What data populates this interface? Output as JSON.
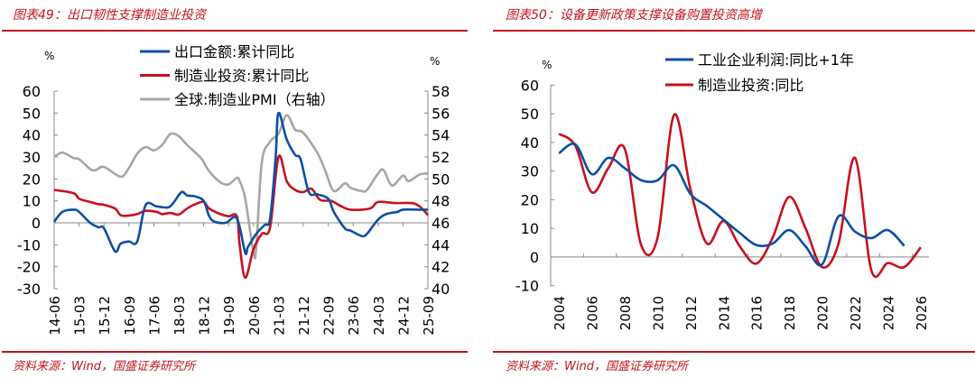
{
  "left": {
    "title": "图表49：出口韧性支撑制造业投资",
    "source": "资料来源：Wind，国盛证券研究所"
  },
  "right": {
    "title": "图表50：设备更新政策支撑设备购置投资高增",
    "source": "资料来源：Wind，国盛证券研究所"
  },
  "chart_data": [
    {
      "type": "line",
      "x_unit": "months since 2014-06",
      "xlim": [
        0,
        135
      ],
      "x_tick_labels": [
        "14-06",
        "15-03",
        "15-12",
        "16-09",
        "17-06",
        "18-03",
        "18-12",
        "19-09",
        "20-06",
        "21-03",
        "21-12",
        "22-09",
        "23-06",
        "24-03",
        "24-12",
        "25-09"
      ],
      "ylabel_left": "%",
      "ylabel_right": "%",
      "ylim_left": [
        -30,
        60
      ],
      "yticks_left": [
        "60",
        "50",
        "40",
        "30",
        "20",
        "10",
        "0",
        "-10",
        "-20",
        "-30"
      ],
      "ylim_right": [
        40,
        58
      ],
      "yticks_right": [
        "58",
        "56",
        "54",
        "52",
        "50",
        "48",
        "46",
        "44",
        "42",
        "40"
      ],
      "series": [
        {
          "name": "出口金额:累计同比",
          "axis": "left",
          "color": "#0b4fa6",
          "x": [
            0,
            3,
            7,
            9,
            13,
            16,
            18,
            22,
            24,
            27,
            30,
            33,
            37,
            41,
            43,
            46,
            48,
            51,
            54,
            56,
            58,
            62,
            66,
            69,
            70,
            73,
            76,
            78,
            80,
            81,
            84,
            87,
            89,
            92,
            95,
            99,
            101,
            105,
            107,
            111,
            113,
            117,
            120,
            124,
            126,
            132,
            135
          ],
          "y": [
            0.5,
            5,
            6,
            5,
            0,
            -2,
            -2.5,
            -13,
            -9.5,
            -8.5,
            -8.5,
            8,
            7.5,
            7,
            9,
            14,
            12.5,
            12,
            10,
            3,
            0.5,
            0,
            2,
            -13.5,
            -11,
            -5,
            -1,
            2,
            30,
            50,
            38,
            31,
            29,
            14,
            13,
            11,
            5,
            -2.5,
            -3.5,
            -6,
            -5,
            1.5,
            4,
            5,
            6,
            6,
            6
          ]
        },
        {
          "name": "制造业投资:累计同比",
          "axis": "left",
          "color": "#c8101e",
          "x": [
            0,
            7,
            9,
            13,
            16,
            18,
            22,
            24,
            27,
            30,
            33,
            37,
            39,
            42,
            45,
            48,
            51,
            54,
            56,
            60,
            63,
            66,
            67,
            69,
            72,
            75,
            78,
            81,
            84,
            87,
            90,
            93,
            96,
            100,
            103,
            107,
            114,
            117,
            123,
            129,
            132,
            135
          ],
          "y": [
            15,
            13.5,
            11,
            9.5,
            8.5,
            8.2,
            6.5,
            3.5,
            3.3,
            4,
            5.5,
            5,
            4,
            4.5,
            3.8,
            6.5,
            8.5,
            9.5,
            6.5,
            4,
            3,
            3,
            -10,
            -25,
            -12,
            -5,
            -2,
            30,
            19,
            15,
            14,
            15.5,
            10.5,
            10,
            8,
            6,
            6.5,
            9.5,
            9,
            9,
            7.5,
            3.5
          ]
        },
        {
          "name": "全球:制造业PMI（右轴）",
          "axis": "right",
          "color": "#a6a6a6",
          "x": [
            0,
            3,
            7,
            9,
            13,
            15,
            18,
            24,
            27,
            30,
            33,
            36,
            39,
            42,
            45,
            48,
            53,
            56,
            60,
            63,
            66,
            67,
            69,
            72,
            73,
            75,
            78,
            81,
            84,
            87,
            90,
            95,
            98,
            101,
            105,
            107,
            111,
            113,
            117,
            119,
            122,
            126,
            128,
            132,
            135
          ],
          "y": [
            52,
            52.4,
            51.9,
            51.8,
            50.9,
            50.8,
            51.1,
            50.2,
            51,
            52.3,
            52.9,
            52.6,
            53.1,
            54.1,
            53.9,
            53.1,
            51.9,
            50.7,
            49.7,
            49.5,
            50.1,
            49.8,
            48.2,
            43.3,
            43.8,
            51.5,
            53.4,
            54.1,
            55.8,
            54.5,
            54.2,
            52.4,
            50.7,
            48.9,
            49.6,
            49.2,
            48.9,
            49,
            50.5,
            50.8,
            49.4,
            50.3,
            49.8,
            50.4,
            50.5
          ]
        }
      ]
    },
    {
      "type": "line",
      "categories": [
        2004,
        2005,
        2006,
        2007,
        2008,
        2009,
        2010,
        2011,
        2012,
        2013,
        2014,
        2015,
        2016,
        2017,
        2018,
        2019,
        2020,
        2021,
        2022,
        2023,
        2024,
        2025,
        2026
      ],
      "x_tick_labels": [
        "2004",
        "2006",
        "2008",
        "2010",
        "2012",
        "2014",
        "2016",
        "2018",
        "2020",
        "2022",
        "2024",
        "2026"
      ],
      "ylabel": "%",
      "ylim": [
        -10,
        60
      ],
      "yticks": [
        "60",
        "50",
        "40",
        "30",
        "20",
        "10",
        "0",
        "-10"
      ],
      "series": [
        {
          "name": "工业企业利润:同比+1年",
          "color": "#0b4fa6",
          "values": [
            36.2,
            39.3,
            28.9,
            34.6,
            31,
            26.8,
            26.8,
            32,
            22,
            17.8,
            13.1,
            8.4,
            4.2,
            4.7,
            9.4,
            3.7,
            -2.6,
            14.2,
            8.9,
            6.6,
            9.4,
            3.9,
            null
          ]
        },
        {
          "name": "制造业投资:同比",
          "color": "#c8101e",
          "values": [
            43,
            38.8,
            22.6,
            31,
            37.8,
            4.2,
            6.8,
            49.6,
            23.6,
            4.7,
            12.6,
            3.7,
            -2.3,
            6.8,
            21,
            10,
            -3.5,
            4.7,
            34.6,
            -4.7,
            -2.1,
            -3.5,
            3.4
          ]
        }
      ]
    }
  ]
}
